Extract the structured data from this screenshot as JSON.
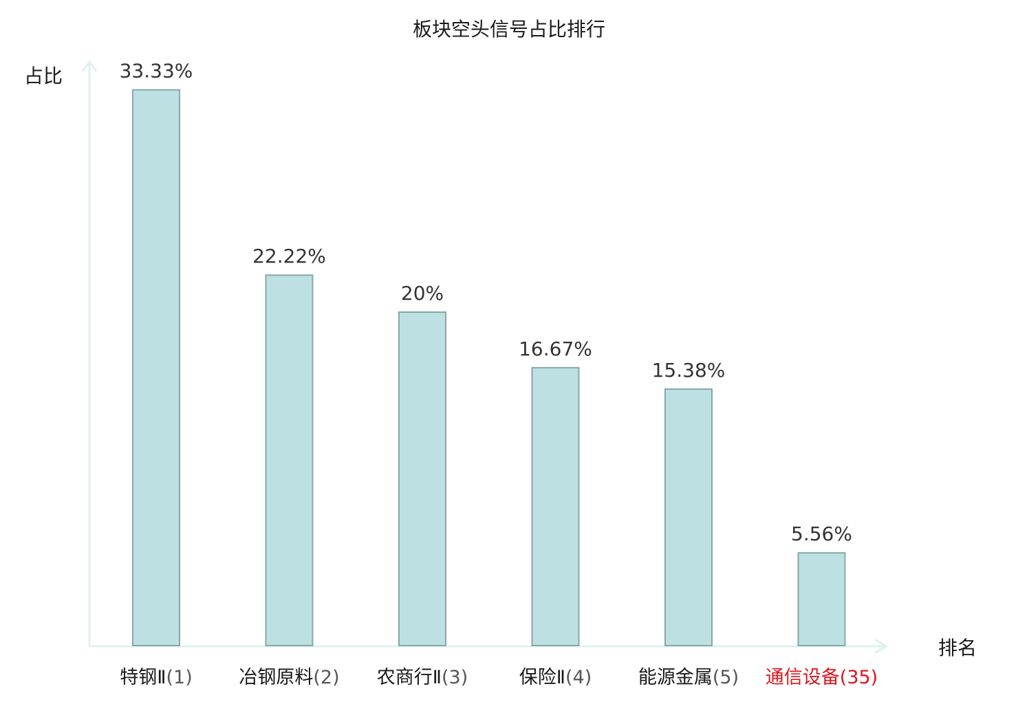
{
  "chart_data": {
    "type": "bar",
    "title": "板块空头信号占比排行",
    "xlabel": "排名",
    "ylabel": "占比",
    "ylim": [
      0,
      35
    ],
    "grid": false,
    "legend": "none",
    "categories": [
      {
        "name": "特钢Ⅱ",
        "rank": "(1)",
        "highlight": false
      },
      {
        "name": "冶钢原料",
        "rank": "(2)",
        "highlight": false
      },
      {
        "name": "农商行Ⅱ",
        "rank": "(3)",
        "highlight": false
      },
      {
        "name": "保险Ⅱ",
        "rank": "(4)",
        "highlight": false
      },
      {
        "name": "能源金属",
        "rank": "(5)",
        "highlight": false
      },
      {
        "name": "通信设备",
        "rank": "(35)",
        "highlight": true
      }
    ],
    "values": [
      33.33,
      22.22,
      20,
      16.67,
      15.38,
      5.56
    ],
    "value_labels": [
      "33.33%",
      "22.22%",
      "20%",
      "16.67%",
      "15.38%",
      "5.56%"
    ],
    "colors": {
      "bar_fill": "#bde0e3",
      "bar_stroke": "#86a8aa",
      "axis": "#dff1ee",
      "highlight": "#e0151c",
      "text": "#1a1a1a",
      "label": "#333333"
    }
  }
}
